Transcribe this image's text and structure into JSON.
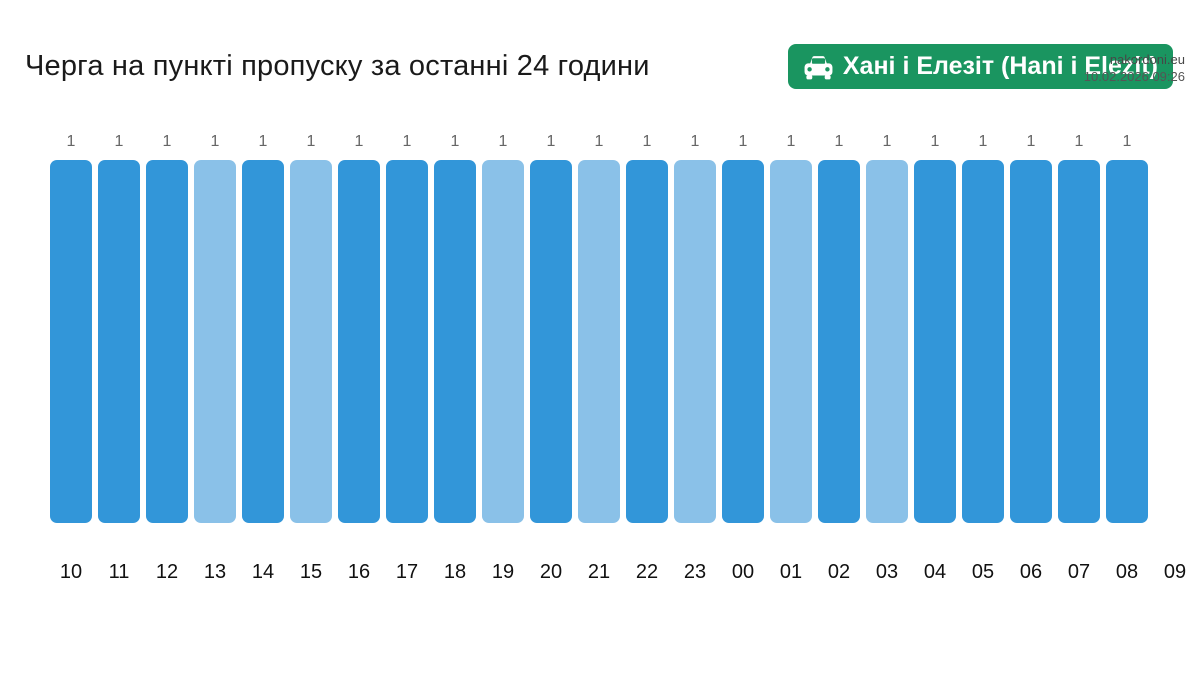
{
  "site_header": {
    "domain": "nakordoni.eu",
    "datetime": "10.02.2026 09:26"
  },
  "header": {
    "title": "Черга на пункті пропуску за останні 24 години",
    "checkpoint_badge": {
      "icon": "car-icon",
      "label": "Хані і Елезіт (Hani i Elezit)",
      "bg_color": "#1a9560",
      "text_color": "#ffffff"
    }
  },
  "chart_data": {
    "type": "bar",
    "title": "Черга на пункті пропуску за останні 24 години",
    "xlabel": "",
    "ylabel": "",
    "categories": [
      "10",
      "11",
      "12",
      "13",
      "14",
      "15",
      "16",
      "17",
      "18",
      "19",
      "20",
      "21",
      "22",
      "23",
      "00",
      "01",
      "02",
      "03",
      "04",
      "05",
      "06",
      "07",
      "08",
      "09"
    ],
    "values": [
      1,
      1,
      1,
      1,
      1,
      1,
      1,
      1,
      1,
      1,
      1,
      1,
      1,
      1,
      1,
      1,
      1,
      1,
      1,
      1,
      1,
      1,
      1,
      null
    ],
    "bar_variants": [
      "dark",
      "dark",
      "dark",
      "light",
      "dark",
      "light",
      "dark",
      "dark",
      "dark",
      "light",
      "dark",
      "light",
      "dark",
      "light",
      "dark",
      "light",
      "dark",
      "light",
      "dark",
      "dark",
      "dark",
      "dark",
      "dark",
      null
    ],
    "colors": {
      "dark": "#3296d9",
      "light": "#8ac1e8"
    },
    "value_label_color": "#666666",
    "axis_label_color": "#111111",
    "ylim": [
      0,
      1
    ],
    "grid": false,
    "legend": false,
    "value_labels_shown": true
  }
}
